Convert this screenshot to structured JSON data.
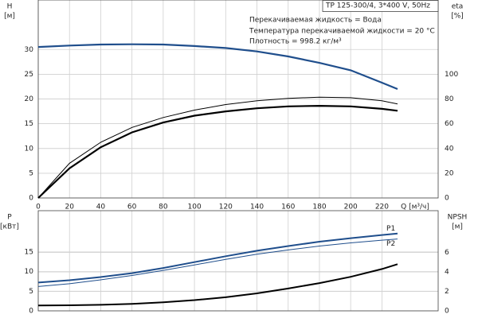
{
  "header": {
    "model": "TP 125-300/4, 3*400 V, 50Hz",
    "info": [
      "Перекачиваемая жидкость = Вода",
      "Температура перекачиваемой жидкости = 20 °C",
      "Плотность = 998.2 кг/м³"
    ]
  },
  "chart_data": [
    {
      "type": "line",
      "ylabel": [
        "H",
        "[м]"
      ],
      "y2label": [
        "eta",
        "[%]"
      ],
      "xlabel": "Q [м³/ч]",
      "x": [
        0,
        20,
        40,
        60,
        80,
        100,
        120,
        140,
        160,
        180,
        200,
        220,
        230
      ],
      "xlim": [
        0,
        256
      ],
      "xticks": [
        0,
        20,
        40,
        60,
        80,
        100,
        120,
        140,
        160,
        180,
        200,
        220
      ],
      "ylim": [
        0,
        40
      ],
      "yticks": [
        0,
        5,
        10,
        15,
        20,
        25,
        30
      ],
      "y2lim": [
        0,
        160
      ],
      "y2ticks": [
        0,
        20,
        40,
        60,
        80,
        100
      ],
      "grid": true,
      "series": [
        {
          "color": "#1f4e8c",
          "width": 2.2,
          "values": [
            30.5,
            30.8,
            31.0,
            31.05,
            31.0,
            30.7,
            30.3,
            29.6,
            28.6,
            27.3,
            25.8,
            23.3,
            22.0
          ]
        },
        {
          "color": "#000000",
          "width": 1,
          "axis": "y2",
          "values": [
            0,
            28,
            45,
            57,
            65,
            71,
            75.5,
            78.5,
            80.5,
            81.5,
            81,
            78.5,
            76
          ]
        },
        {
          "color": "#000000",
          "width": 2.2,
          "axis": "y2",
          "values": [
            0,
            24,
            41,
            53,
            61,
            66.5,
            70,
            72.5,
            74,
            74.5,
            74,
            72,
            70.5
          ]
        }
      ]
    },
    {
      "type": "line",
      "ylabel": [
        "P",
        "[кВт]"
      ],
      "y2label": [
        "NPSH",
        "[м]"
      ],
      "x": [
        0,
        20,
        40,
        60,
        80,
        100,
        120,
        140,
        160,
        180,
        200,
        220,
        230
      ],
      "xlim": [
        0,
        256
      ],
      "ylim": [
        0,
        25.5
      ],
      "yticks": [
        0,
        5,
        10,
        15
      ],
      "y2lim": [
        0,
        10.3
      ],
      "y2ticks": [
        0,
        2,
        4,
        6
      ],
      "grid": true,
      "series": [
        {
          "name": "P1",
          "color": "#1f4e8c",
          "width": 2,
          "values": [
            7.2,
            7.8,
            8.6,
            9.6,
            10.9,
            12.4,
            13.9,
            15.3,
            16.5,
            17.6,
            18.5,
            19.3,
            19.7
          ]
        },
        {
          "name": "P2",
          "color": "#1f4e8c",
          "width": 1,
          "values": [
            6.2,
            6.9,
            7.9,
            9.0,
            10.3,
            11.7,
            13.1,
            14.4,
            15.5,
            16.5,
            17.3,
            18.0,
            18.3
          ]
        },
        {
          "color": "#000000",
          "width": 2,
          "axis": "y2",
          "values": [
            0.55,
            0.57,
            0.62,
            0.72,
            0.88,
            1.1,
            1.4,
            1.8,
            2.3,
            2.85,
            3.5,
            4.3,
            4.8
          ]
        }
      ]
    }
  ]
}
